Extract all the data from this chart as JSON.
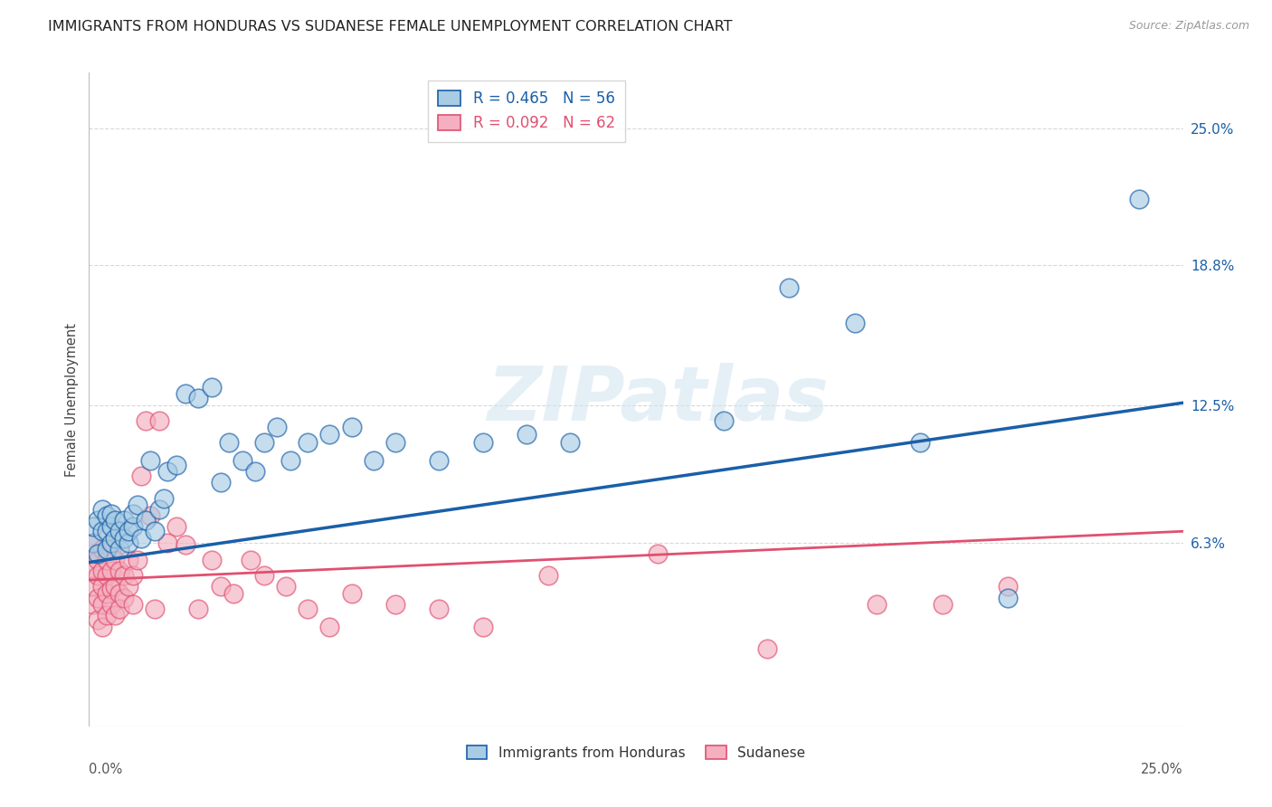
{
  "title": "IMMIGRANTS FROM HONDURAS VS SUDANESE FEMALE UNEMPLOYMENT CORRELATION CHART",
  "source": "Source: ZipAtlas.com",
  "ylabel": "Female Unemployment",
  "ytick_labels": [
    "6.3%",
    "12.5%",
    "18.8%",
    "25.0%"
  ],
  "ytick_values": [
    0.063,
    0.125,
    0.188,
    0.25
  ],
  "xmin": 0.0,
  "xmax": 0.25,
  "ymin": -0.02,
  "ymax": 0.275,
  "legend1_label": "Immigrants from Honduras",
  "legend2_label": "Sudanese",
  "r1": 0.465,
  "n1": 56,
  "r2": 0.092,
  "n2": 62,
  "color1": "#a8cce4",
  "color2": "#f4afc0",
  "trendline1_color": "#1a5fa8",
  "trendline2_color": "#e05070",
  "background_color": "#ffffff",
  "grid_color": "#d8d8d8",
  "title_fontsize": 11.5,
  "source_fontsize": 9,
  "watermark_text": "ZIPatlas",
  "blue_trendline_x0": 0.0,
  "blue_trendline_y0": 0.054,
  "blue_trendline_x1": 0.25,
  "blue_trendline_y1": 0.126,
  "pink_trendline_x0": 0.0,
  "pink_trendline_y0": 0.046,
  "pink_trendline_x1": 0.25,
  "pink_trendline_y1": 0.068,
  "blue_points_x": [
    0.001,
    0.001,
    0.002,
    0.002,
    0.003,
    0.003,
    0.004,
    0.004,
    0.004,
    0.005,
    0.005,
    0.005,
    0.006,
    0.006,
    0.007,
    0.007,
    0.008,
    0.008,
    0.009,
    0.009,
    0.01,
    0.01,
    0.011,
    0.012,
    0.013,
    0.014,
    0.015,
    0.016,
    0.017,
    0.018,
    0.02,
    0.022,
    0.025,
    0.028,
    0.03,
    0.032,
    0.035,
    0.038,
    0.04,
    0.043,
    0.046,
    0.05,
    0.055,
    0.06,
    0.065,
    0.07,
    0.08,
    0.09,
    0.1,
    0.11,
    0.145,
    0.16,
    0.175,
    0.19,
    0.21,
    0.24
  ],
  "blue_points_y": [
    0.063,
    0.07,
    0.058,
    0.073,
    0.068,
    0.078,
    0.06,
    0.068,
    0.075,
    0.063,
    0.07,
    0.076,
    0.065,
    0.073,
    0.06,
    0.068,
    0.065,
    0.073,
    0.063,
    0.068,
    0.07,
    0.076,
    0.08,
    0.065,
    0.073,
    0.1,
    0.068,
    0.078,
    0.083,
    0.095,
    0.098,
    0.13,
    0.128,
    0.133,
    0.09,
    0.108,
    0.1,
    0.095,
    0.108,
    0.115,
    0.1,
    0.108,
    0.112,
    0.115,
    0.1,
    0.108,
    0.1,
    0.108,
    0.112,
    0.108,
    0.118,
    0.178,
    0.162,
    0.108,
    0.038,
    0.218
  ],
  "pink_points_x": [
    0.001,
    0.001,
    0.001,
    0.001,
    0.001,
    0.002,
    0.002,
    0.002,
    0.002,
    0.003,
    0.003,
    0.003,
    0.003,
    0.003,
    0.004,
    0.004,
    0.004,
    0.004,
    0.005,
    0.005,
    0.005,
    0.005,
    0.006,
    0.006,
    0.006,
    0.007,
    0.007,
    0.007,
    0.008,
    0.008,
    0.009,
    0.009,
    0.01,
    0.01,
    0.011,
    0.012,
    0.013,
    0.014,
    0.015,
    0.016,
    0.018,
    0.02,
    0.022,
    0.025,
    0.028,
    0.03,
    0.033,
    0.037,
    0.04,
    0.045,
    0.05,
    0.055,
    0.06,
    0.07,
    0.08,
    0.09,
    0.105,
    0.13,
    0.155,
    0.18,
    0.195,
    0.21
  ],
  "pink_points_y": [
    0.05,
    0.058,
    0.063,
    0.043,
    0.035,
    0.055,
    0.048,
    0.038,
    0.028,
    0.05,
    0.043,
    0.035,
    0.06,
    0.025,
    0.048,
    0.04,
    0.03,
    0.055,
    0.042,
    0.05,
    0.035,
    0.06,
    0.055,
    0.043,
    0.03,
    0.05,
    0.04,
    0.033,
    0.048,
    0.038,
    0.043,
    0.055,
    0.035,
    0.048,
    0.055,
    0.093,
    0.118,
    0.075,
    0.033,
    0.118,
    0.063,
    0.07,
    0.062,
    0.033,
    0.055,
    0.043,
    0.04,
    0.055,
    0.048,
    0.043,
    0.033,
    0.025,
    0.04,
    0.035,
    0.033,
    0.025,
    0.048,
    0.058,
    0.015,
    0.035,
    0.035,
    0.043
  ]
}
